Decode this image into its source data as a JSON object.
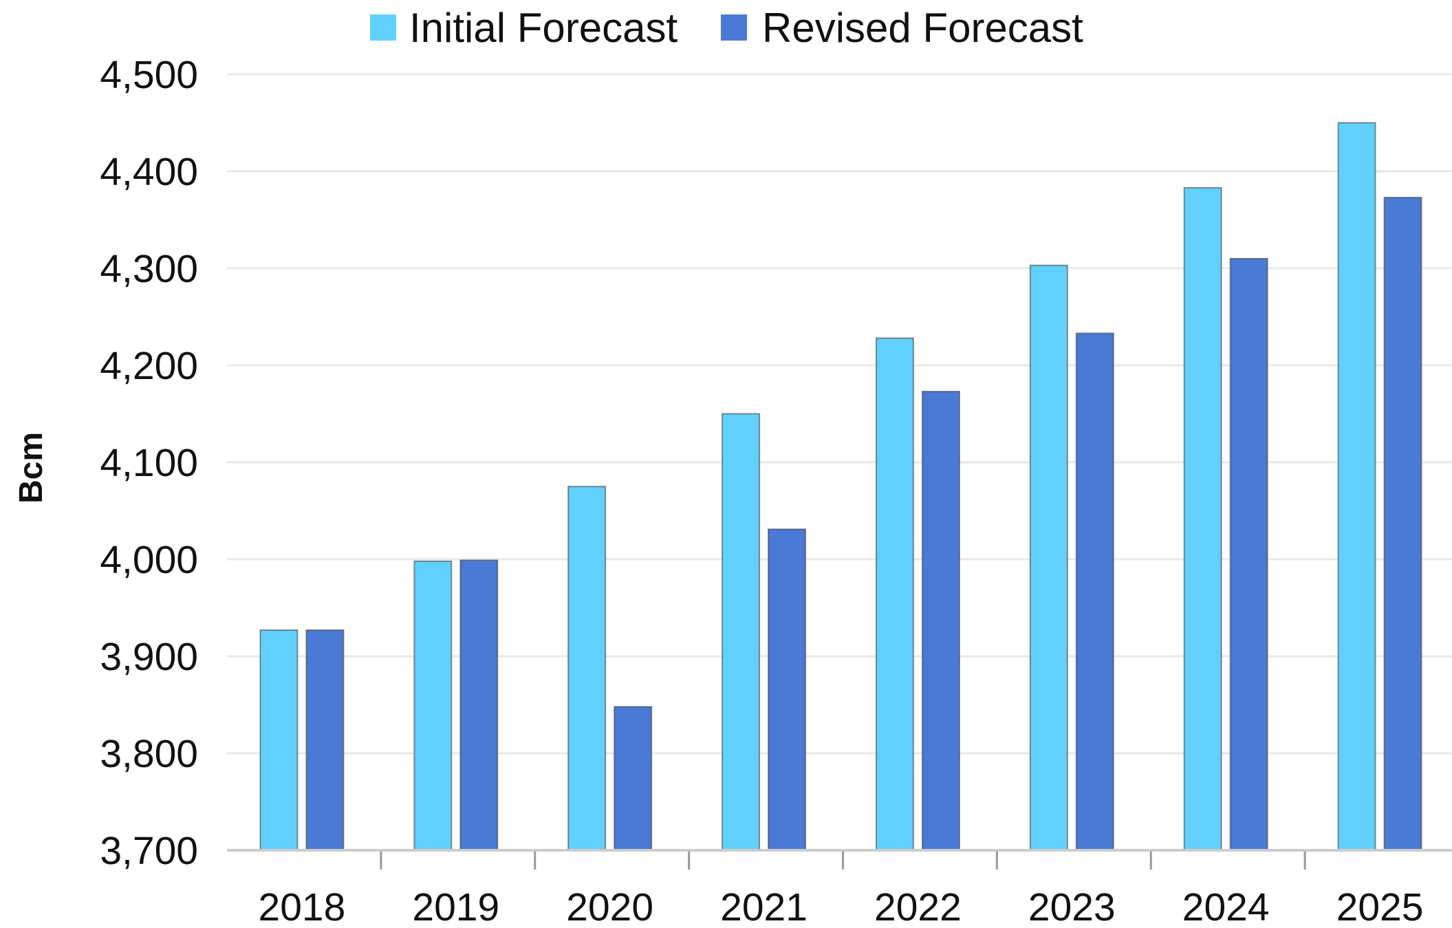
{
  "chart_data": {
    "type": "bar",
    "ylabel": "Bcm",
    "xlabel": "",
    "ylim": [
      3700,
      4500
    ],
    "yticks": [
      3700,
      3800,
      3900,
      4000,
      4100,
      4200,
      4300,
      4400,
      4500
    ],
    "ytick_labels": [
      "3,700",
      "3,800",
      "3,900",
      "4,000",
      "4,100",
      "4,200",
      "4,300",
      "4,400",
      "4,500"
    ],
    "grid": true,
    "legend_position": "top-center",
    "categories": [
      "2018",
      "2019",
      "2020",
      "2021",
      "2022",
      "2023",
      "2024",
      "2025"
    ],
    "series": [
      {
        "name": "Initial Forecast",
        "color": "#62d0fc",
        "values": [
          3927,
          3998,
          4075,
          4150,
          4228,
          4303,
          4383,
          4450
        ]
      },
      {
        "name": "Revised Forecast",
        "color": "#4a7ad6",
        "values": [
          3927,
          3999,
          3848,
          4031,
          4173,
          4233,
          4310,
          4373
        ]
      }
    ]
  }
}
